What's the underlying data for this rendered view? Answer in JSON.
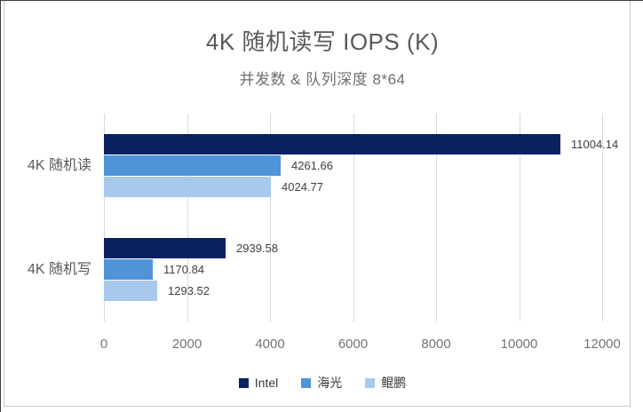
{
  "chart_data": {
    "type": "bar",
    "orientation": "horizontal",
    "title": "4K 随机读写 IOPS (K)",
    "subtitle": "并发数 & 队列深度 8*64",
    "categories": [
      "4K 随机读",
      "4K 随机写"
    ],
    "series": [
      {
        "name": "Intel",
        "color": "#0A2262",
        "values": [
          11004.14,
          2939.58
        ],
        "labels": [
          "11004.14",
          "2939.58"
        ]
      },
      {
        "name": "海光",
        "color": "#4F94D9",
        "values": [
          4261.66,
          1170.84
        ],
        "labels": [
          "4261.66",
          "1170.84"
        ]
      },
      {
        "name": "鲲鹏",
        "color": "#A7C9EC",
        "values": [
          4024.77,
          1293.52
        ],
        "labels": [
          "4024.77",
          "1293.52"
        ]
      }
    ],
    "x_ticks": [
      "0",
      "2000",
      "4000",
      "6000",
      "8000",
      "10000",
      "12000"
    ],
    "xlim": [
      0,
      12000
    ],
    "grid": "vertical-only",
    "legend_position": "bottom-center",
    "gridline_color": "#d9d9d9"
  }
}
